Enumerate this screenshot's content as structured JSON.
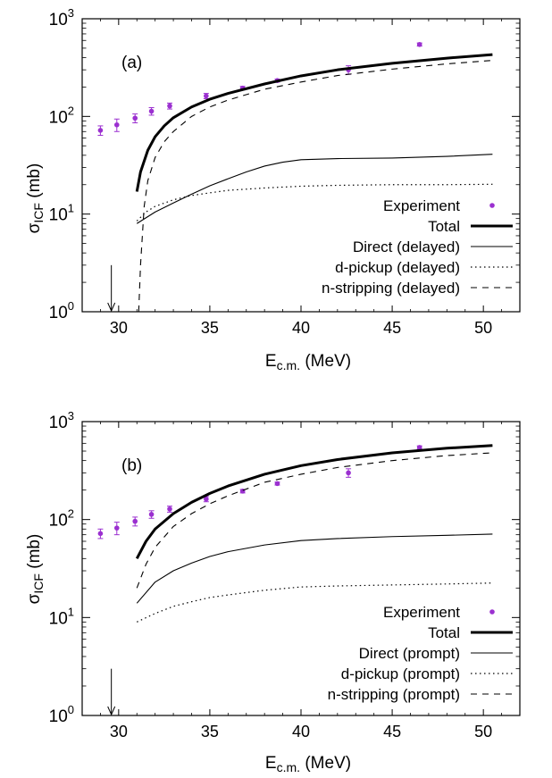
{
  "colors": {
    "experiment": "#9b30d0",
    "curves": "#000000"
  },
  "chart_data": [
    {
      "type": "line",
      "panel_label": "(a)",
      "xlabel": {
        "main": "E",
        "sub": "c.m.",
        "rest": " (MeV)"
      },
      "ylabel": {
        "main": "σ",
        "sub": "ICF",
        "rest": " (mb)"
      },
      "xlim": [
        28,
        52
      ],
      "ylim": [
        1,
        1000
      ],
      "yscale": "log",
      "xticks": [
        30,
        35,
        40,
        45,
        50
      ],
      "yticks": [
        1,
        10,
        100,
        1000
      ],
      "ytick_labels": [
        {
          "base": "10",
          "exp": "0"
        },
        {
          "base": "10",
          "exp": "1"
        },
        {
          "base": "10",
          "exp": "2"
        },
        {
          "base": "10",
          "exp": "3"
        }
      ],
      "grid": false,
      "legend_position": "bottom-right",
      "arrow_at_x": 29.6,
      "legend": [
        "Experiment",
        "Total",
        "Direct (delayed)",
        "d-pickup (delayed)",
        "n-stripping (delayed)"
      ],
      "series": [
        {
          "name": "Experiment",
          "kind": "points",
          "x": [
            29.0,
            29.9,
            30.9,
            31.8,
            32.8,
            34.8,
            36.8,
            38.7,
            42.6,
            46.5
          ],
          "y": [
            72,
            82,
            96,
            113,
            128,
            162,
            195,
            233,
            300,
            545
          ],
          "yerr": [
            8,
            12,
            10,
            10,
            9,
            10,
            8,
            8,
            30,
            20
          ]
        },
        {
          "name": "Total",
          "kind": "line",
          "style": "thick",
          "x": [
            31.0,
            31.2,
            31.6,
            32.0,
            32.5,
            33,
            34,
            35,
            36,
            38,
            40,
            42,
            45,
            48,
            50.5
          ],
          "y": [
            17,
            27,
            45,
            62,
            80,
            97,
            125,
            150,
            172,
            215,
            260,
            300,
            350,
            395,
            430
          ]
        },
        {
          "name": "Direct (delayed)",
          "kind": "line",
          "style": "solid",
          "x": [
            31.0,
            32,
            33,
            34,
            35,
            36,
            37,
            38,
            39,
            40,
            42,
            45,
            48,
            50.5
          ],
          "y": [
            8,
            10.5,
            13,
            16,
            19.5,
            23,
            27,
            31,
            34,
            36,
            37,
            37.5,
            39,
            41
          ]
        },
        {
          "name": "d-pickup (delayed)",
          "kind": "line",
          "style": "dotted",
          "x": [
            31.0,
            31.5,
            32,
            33,
            34,
            35,
            36,
            38,
            40,
            42,
            45,
            48,
            50.5
          ],
          "y": [
            8.5,
            10.5,
            12,
            14,
            15.5,
            16.5,
            17.5,
            18.5,
            19.3,
            19.7,
            20,
            20,
            20.2
          ]
        },
        {
          "name": "n-stripping (delayed)",
          "kind": "line",
          "style": "dashed",
          "x": [
            31.1,
            31.2,
            31.4,
            31.6,
            32.0,
            32.5,
            33,
            34,
            35,
            36,
            38,
            40,
            42,
            45,
            48,
            50.5
          ],
          "y": [
            1,
            3,
            12,
            22,
            38,
            55,
            70,
            100,
            125,
            147,
            190,
            225,
            262,
            305,
            345,
            375
          ]
        }
      ]
    },
    {
      "type": "line",
      "panel_label": "(b)",
      "xlabel": {
        "main": "E",
        "sub": "c.m.",
        "rest": " (MeV)"
      },
      "ylabel": {
        "main": "σ",
        "sub": "ICF",
        "rest": " (mb)"
      },
      "xlim": [
        28,
        52
      ],
      "ylim": [
        1,
        1000
      ],
      "yscale": "log",
      "xticks": [
        30,
        35,
        40,
        45,
        50
      ],
      "yticks": [
        1,
        10,
        100,
        1000
      ],
      "ytick_labels": [
        {
          "base": "10",
          "exp": "0"
        },
        {
          "base": "10",
          "exp": "1"
        },
        {
          "base": "10",
          "exp": "2"
        },
        {
          "base": "10",
          "exp": "3"
        }
      ],
      "grid": false,
      "legend_position": "bottom-right",
      "arrow_at_x": 29.6,
      "legend": [
        "Experiment",
        "Total",
        "Direct (prompt)",
        "d-pickup (prompt)",
        "n-stripping (prompt)"
      ],
      "series": [
        {
          "name": "Experiment",
          "kind": "points",
          "x": [
            29.0,
            29.9,
            30.9,
            31.8,
            32.8,
            34.8,
            36.8,
            38.7,
            42.6,
            46.5
          ],
          "y": [
            72,
            82,
            96,
            113,
            128,
            162,
            195,
            233,
            300,
            545
          ],
          "yerr": [
            8,
            12,
            10,
            10,
            9,
            10,
            8,
            8,
            30,
            20
          ]
        },
        {
          "name": "Total",
          "kind": "line",
          "style": "thick",
          "x": [
            31.0,
            31.5,
            32,
            33,
            34,
            35,
            36,
            38,
            40,
            42,
            45,
            48,
            50.5
          ],
          "y": [
            40,
            60,
            80,
            115,
            150,
            185,
            220,
            290,
            355,
            410,
            480,
            535,
            570
          ]
        },
        {
          "name": "Direct (prompt)",
          "kind": "line",
          "style": "solid",
          "x": [
            31.0,
            32,
            33,
            34,
            35,
            36,
            38,
            40,
            42,
            45,
            48,
            50.5
          ],
          "y": [
            14,
            23,
            30,
            36,
            42,
            47,
            55,
            61,
            64,
            67,
            69,
            71
          ]
        },
        {
          "name": "d-pickup (prompt)",
          "kind": "line",
          "style": "dotted",
          "x": [
            31.0,
            32,
            33,
            34,
            35,
            36,
            38,
            40,
            42,
            45,
            48,
            50.5
          ],
          "y": [
            9,
            11,
            13,
            14.5,
            16,
            17,
            19,
            20.5,
            21,
            21.5,
            22,
            22.5
          ]
        },
        {
          "name": "n-stripping (prompt)",
          "kind": "line",
          "style": "dashed",
          "x": [
            31.0,
            31.5,
            32,
            33,
            34,
            35,
            36,
            38,
            40,
            42,
            45,
            48,
            50.5
          ],
          "y": [
            20,
            35,
            52,
            85,
            115,
            145,
            175,
            240,
            290,
            340,
            400,
            450,
            480
          ]
        }
      ]
    }
  ]
}
